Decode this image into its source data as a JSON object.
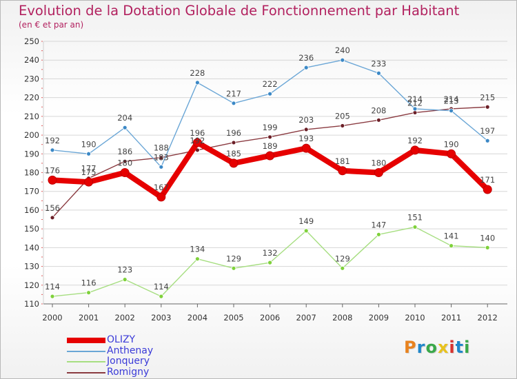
{
  "title": "Evolution de la Dotation Globale de Fonctionnement par Habitant",
  "subtitle": "(en € et par an)",
  "logo": {
    "letters": [
      "P",
      "r",
      "o",
      "x",
      "i",
      "t",
      "i"
    ],
    "colors": [
      "#e8821e",
      "#1f86c9",
      "#3aa84a",
      "#e8c21e",
      "#d8322e",
      "#1f86c9",
      "#3aa84a"
    ]
  },
  "chart_data": {
    "type": "line",
    "x": [
      "2000",
      "2001",
      "2002",
      "2003",
      "2004",
      "2005",
      "2006",
      "2007",
      "2008",
      "2009",
      "2010",
      "2011",
      "2012"
    ],
    "y_ticks": [
      110,
      120,
      130,
      140,
      150,
      160,
      170,
      180,
      190,
      200,
      210,
      220,
      230,
      240,
      250
    ],
    "ylim": [
      110,
      250
    ],
    "grid": "horizontal",
    "legend_position": "bottom-left",
    "series": [
      {
        "name": "Romigny",
        "color": "#6b1f27",
        "line_color": "#8a3a40",
        "emphasis": false,
        "values": [
          156,
          177,
          186,
          188,
          192,
          196,
          199,
          203,
          205,
          208,
          212,
          214,
          215
        ],
        "labels": [
          "156",
          "177",
          "186",
          "188",
          "192",
          "196",
          "199",
          "203",
          "205",
          "208",
          "212",
          "214",
          "215"
        ]
      },
      {
        "name": "Anthenay",
        "color": "#3b88c6",
        "line_color": "#6aa6d6",
        "emphasis": false,
        "values": [
          192,
          190,
          204,
          183,
          228,
          217,
          222,
          236,
          240,
          233,
          214,
          213,
          197
        ],
        "labels": [
          "192",
          "190",
          "204",
          "183",
          "228",
          "217",
          "222",
          "236",
          "240",
          "233",
          "214",
          "213",
          "197"
        ]
      },
      {
        "name": "Jonquery",
        "color": "#7fd13b",
        "line_color": "#a6de80",
        "emphasis": false,
        "values": [
          114,
          116,
          123,
          114,
          134,
          129,
          132,
          149,
          129,
          147,
          151,
          141,
          140
        ],
        "labels": [
          "114",
          "116",
          "123",
          "114",
          "134",
          "129",
          "132",
          "149",
          "129",
          "147",
          "151",
          "141",
          "140"
        ]
      },
      {
        "name": "OLIZY",
        "color": "#e60000",
        "line_color": "#e60000",
        "emphasis": true,
        "values": [
          176,
          175,
          180,
          167,
          196,
          185,
          189,
          193,
          181,
          180,
          192,
          190,
          171
        ],
        "labels": [
          "176",
          "175",
          "180",
          "167",
          "196",
          "185",
          "189",
          "193",
          "181",
          "180",
          "192",
          "190",
          "171"
        ]
      }
    ]
  },
  "legend": [
    {
      "name": "OLIZY",
      "color": "#e60000",
      "thick": true
    },
    {
      "name": "Anthenay",
      "color": "#6aa6d6",
      "thick": false
    },
    {
      "name": "Jonquery",
      "color": "#a6de80",
      "thick": false
    },
    {
      "name": "Romigny",
      "color": "#8a3a40",
      "thick": false
    }
  ]
}
